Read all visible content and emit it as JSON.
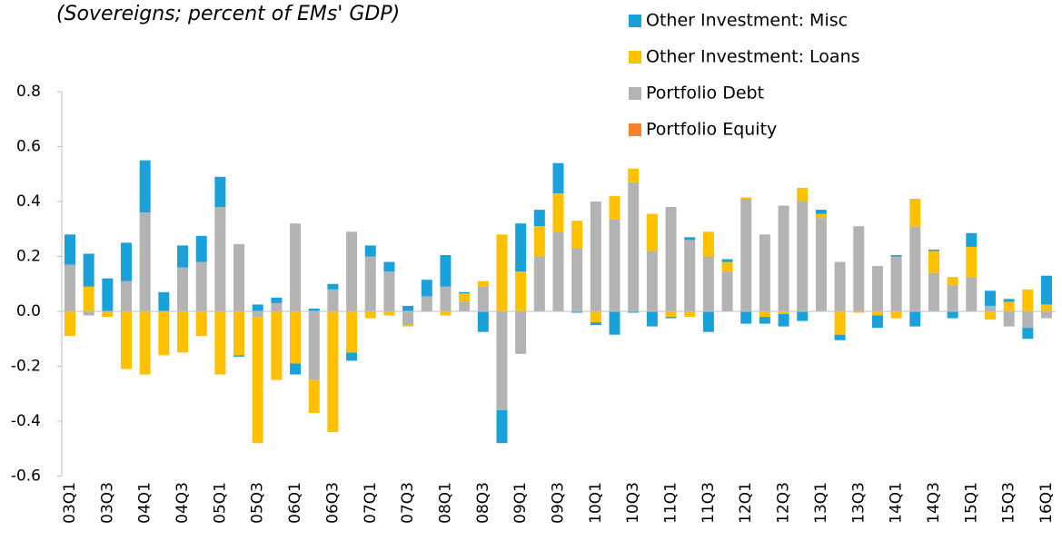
{
  "chart_data": {
    "type": "bar",
    "stacked": true,
    "title": "(Sovereigns; percent of EMs' GDP)",
    "categories": [
      "03Q1",
      null,
      "03Q3",
      null,
      "04Q1",
      null,
      "04Q3",
      null,
      "05Q1",
      null,
      "05Q3",
      null,
      "06Q1",
      null,
      "06Q3",
      null,
      "07Q1",
      null,
      "07Q3",
      null,
      "08Q1",
      null,
      "08Q3",
      null,
      "09Q1",
      null,
      "09Q3",
      null,
      "10Q1",
      null,
      "10Q3",
      null,
      "11Q1",
      null,
      "11Q3",
      null,
      "12Q1",
      null,
      "12Q3",
      null,
      "13Q1",
      null,
      "13Q3",
      null,
      "14Q1",
      null,
      "14Q3",
      null,
      "15Q1",
      null,
      "15Q3",
      null,
      "16Q1"
    ],
    "series": [
      {
        "name": "Other Investment: Misc",
        "color": "#1ba1d9",
        "values": [
          0.11,
          0.12,
          0.12,
          0.14,
          0.19,
          0.07,
          0.08,
          0.095,
          0.11,
          -0.005,
          0.025,
          0.02,
          -0.04,
          0.01,
          0.02,
          -0.03,
          0.04,
          0.035,
          0.02,
          0.06,
          0.115,
          0.005,
          -0.075,
          -0.12,
          0.175,
          0.06,
          0.11,
          -0.005,
          -0.01,
          -0.085,
          -0.005,
          -0.055,
          -0.005,
          0.01,
          -0.075,
          0.01,
          -0.045,
          -0.025,
          -0.045,
          -0.035,
          0.015,
          -0.02,
          0,
          -0.045,
          0.005,
          -0.055,
          0.005,
          -0.025,
          0.05,
          0.055,
          0.01,
          -0.04,
          0.105
        ]
      },
      {
        "name": "Other Investment: Loans",
        "color": "#ffc000",
        "values": [
          -0.09,
          0.09,
          -0.02,
          -0.21,
          -0.23,
          -0.16,
          -0.15,
          -0.09,
          -0.23,
          -0.16,
          -0.46,
          -0.25,
          -0.19,
          -0.12,
          -0.44,
          -0.15,
          -0.025,
          -0.015,
          -0.005,
          0,
          -0.015,
          0.03,
          0.02,
          0.28,
          0.145,
          0.11,
          0.14,
          0.1,
          -0.04,
          0.085,
          0.05,
          0.135,
          -0.02,
          -0.02,
          0.09,
          0.035,
          0.005,
          -0.02,
          -0.01,
          0.05,
          0.015,
          -0.085,
          -0.005,
          -0.015,
          -0.025,
          0.1,
          0.08,
          0.03,
          0.11,
          -0.03,
          0.035,
          0.08,
          0.025
        ]
      },
      {
        "name": "Portfolio Debt",
        "color": "#b3b3b3",
        "values": [
          0.17,
          -0.015,
          0,
          0.11,
          0.36,
          0,
          0.16,
          0.18,
          0.38,
          0.245,
          -0.02,
          0.03,
          0.32,
          -0.25,
          0.08,
          0.29,
          0.2,
          0.145,
          -0.05,
          0.055,
          0.09,
          0.035,
          0.09,
          -0.36,
          -0.155,
          0.2,
          0.29,
          0.23,
          0.4,
          0.335,
          0.47,
          0.22,
          0.38,
          0.26,
          0.2,
          0.145,
          0.41,
          0.28,
          0.385,
          0.4,
          0.34,
          0.18,
          0.31,
          0.165,
          0.2,
          0.31,
          0.14,
          0.095,
          0.125,
          0.02,
          -0.055,
          -0.06,
          -0.025
        ]
      },
      {
        "name": "Portfolio Equity",
        "color": "#f5822a",
        "values": [
          0,
          0,
          0,
          0,
          0,
          0,
          0,
          0,
          0,
          0,
          0,
          0,
          0,
          0,
          0,
          0,
          0,
          0,
          0,
          0,
          0,
          0,
          0,
          0,
          0,
          0,
          0,
          0,
          0,
          0,
          0,
          0,
          0,
          0,
          0,
          0,
          0,
          0,
          0,
          0,
          0,
          0,
          0,
          0,
          0,
          0,
          0,
          0,
          0,
          0,
          0,
          0,
          0
        ]
      }
    ],
    "ylim": [
      -0.6,
      0.8
    ],
    "yticks": [
      {
        "value": -0.6,
        "label": "-0.6"
      },
      {
        "value": -0.4,
        "label": "-0.4"
      },
      {
        "value": -0.2,
        "label": "-0.2"
      },
      {
        "value": 0,
        "label": "0.0"
      },
      {
        "value": 0.2,
        "label": "0.2"
      },
      {
        "value": 0.4,
        "label": "0.4"
      },
      {
        "value": 0.6,
        "label": "0.6"
      },
      {
        "value": 0.8,
        "label": "0.8"
      }
    ],
    "legend": "top-right"
  }
}
